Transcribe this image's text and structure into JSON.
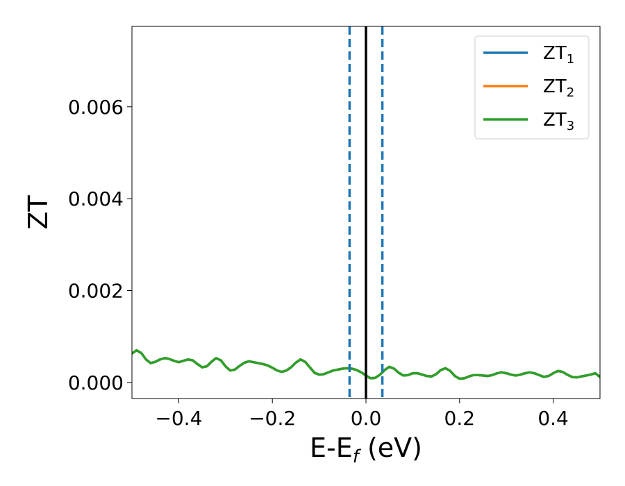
{
  "chart_data": {
    "type": "line",
    "xlabel": {
      "main": "E-E",
      "sub": "f",
      "suffix": " (eV)"
    },
    "ylabel": "ZT",
    "xlim": [
      -0.5,
      0.5
    ],
    "ylim": [
      -0.00035,
      0.00775
    ],
    "x_ticks": [
      -0.4,
      -0.2,
      0.0,
      0.2,
      0.4
    ],
    "x_tick_labels": [
      "−0.4",
      "−0.2",
      "0.0",
      "0.2",
      "0.4"
    ],
    "y_ticks": [
      0.0,
      0.002,
      0.004,
      0.006
    ],
    "y_tick_labels": [
      "0.000",
      "0.002",
      "0.004",
      "0.006"
    ],
    "grid": false,
    "legend_position": "top-right",
    "vertical_lines": [
      {
        "x": -0.035,
        "color": "#1f77b4",
        "style": "dashed"
      },
      {
        "x": 0.0,
        "color": "#000000",
        "style": "solid"
      },
      {
        "x": 0.035,
        "color": "#1f77b4",
        "style": "dashed"
      }
    ],
    "x": [
      -0.5,
      -0.49,
      -0.48,
      -0.47,
      -0.46,
      -0.45,
      -0.44,
      -0.43,
      -0.42,
      -0.41,
      -0.4,
      -0.39,
      -0.38,
      -0.37,
      -0.36,
      -0.35,
      -0.34,
      -0.33,
      -0.32,
      -0.31,
      -0.3,
      -0.29,
      -0.28,
      -0.27,
      -0.26,
      -0.25,
      -0.24,
      -0.23,
      -0.22,
      -0.21,
      -0.2,
      -0.19,
      -0.18,
      -0.17,
      -0.16,
      -0.15,
      -0.14,
      -0.13,
      -0.12,
      -0.11,
      -0.1,
      -0.09,
      -0.08,
      -0.07,
      -0.06,
      -0.05,
      -0.04,
      -0.03,
      -0.02,
      -0.01,
      0.0,
      0.01,
      0.02,
      0.03,
      0.04,
      0.05,
      0.06,
      0.07,
      0.08,
      0.09,
      0.1,
      0.11,
      0.12,
      0.13,
      0.14,
      0.15,
      0.16,
      0.17,
      0.18,
      0.19,
      0.2,
      0.21,
      0.22,
      0.23,
      0.24,
      0.25,
      0.26,
      0.27,
      0.28,
      0.29,
      0.3,
      0.31,
      0.32,
      0.33,
      0.34,
      0.35,
      0.36,
      0.37,
      0.38,
      0.39,
      0.4,
      0.41,
      0.42,
      0.43,
      0.44,
      0.45,
      0.46,
      0.47,
      0.48,
      0.49,
      0.5
    ],
    "series": [
      {
        "name": "ZT",
        "sub": "1",
        "color": "#1f77b4",
        "values": [
          0.00063,
          0.0007,
          0.00064,
          0.0005,
          0.00042,
          0.00045,
          0.0005,
          0.00053,
          0.00051,
          0.00047,
          0.00044,
          0.00047,
          0.0005,
          0.00048,
          0.0004,
          0.00033,
          0.00035,
          0.00045,
          0.00053,
          0.00048,
          0.00035,
          0.00026,
          0.00028,
          0.00036,
          0.00043,
          0.00046,
          0.00044,
          0.00042,
          0.0004,
          0.00037,
          0.00032,
          0.00026,
          0.00023,
          0.00026,
          0.00033,
          0.00043,
          0.0005,
          0.00045,
          0.00033,
          0.00021,
          0.00017,
          0.00018,
          0.00022,
          0.00026,
          0.00028,
          0.0003,
          0.00031,
          0.0003,
          0.00027,
          0.00022,
          0.00015,
          9e-05,
          0.0001,
          0.00017,
          0.00027,
          0.00034,
          0.0003,
          0.00021,
          0.00015,
          0.00016,
          0.0002,
          0.0002,
          0.00017,
          0.00014,
          0.00013,
          0.00018,
          0.00027,
          0.00031,
          0.00025,
          0.00014,
          8e-05,
          9e-05,
          0.00013,
          0.00016,
          0.00016,
          0.00015,
          0.00014,
          0.00016,
          0.0002,
          0.00022,
          0.0002,
          0.00017,
          0.00015,
          0.00017,
          0.0002,
          0.00022,
          0.0002,
          0.00016,
          0.00012,
          0.00014,
          0.0002,
          0.00025,
          0.00023,
          0.00017,
          0.00012,
          0.00011,
          0.00013,
          0.00015,
          0.00017,
          0.0002,
          0.00012
        ]
      },
      {
        "name": "ZT",
        "sub": "2",
        "color": "#ff7f0e",
        "values": [
          0.00063,
          0.0007,
          0.00064,
          0.0005,
          0.00042,
          0.00045,
          0.0005,
          0.00053,
          0.00051,
          0.00047,
          0.00044,
          0.00047,
          0.0005,
          0.00048,
          0.0004,
          0.00033,
          0.00035,
          0.00045,
          0.00053,
          0.00048,
          0.00035,
          0.00026,
          0.00028,
          0.00036,
          0.00043,
          0.00046,
          0.00044,
          0.00042,
          0.0004,
          0.00037,
          0.00032,
          0.00026,
          0.00023,
          0.00026,
          0.00033,
          0.00043,
          0.0005,
          0.00045,
          0.00033,
          0.00021,
          0.00017,
          0.00018,
          0.00022,
          0.00026,
          0.00028,
          0.0003,
          0.00031,
          0.0003,
          0.00027,
          0.00022,
          0.00015,
          9e-05,
          0.0001,
          0.00017,
          0.00027,
          0.00034,
          0.0003,
          0.00021,
          0.00015,
          0.00016,
          0.0002,
          0.0002,
          0.00017,
          0.00014,
          0.00013,
          0.00018,
          0.00027,
          0.00031,
          0.00025,
          0.00014,
          8e-05,
          9e-05,
          0.00013,
          0.00016,
          0.00016,
          0.00015,
          0.00014,
          0.00016,
          0.0002,
          0.00022,
          0.0002,
          0.00017,
          0.00015,
          0.00017,
          0.0002,
          0.00022,
          0.0002,
          0.00016,
          0.00012,
          0.00014,
          0.0002,
          0.00025,
          0.00023,
          0.00017,
          0.00012,
          0.00011,
          0.00013,
          0.00015,
          0.00017,
          0.0002,
          0.00012
        ]
      },
      {
        "name": "ZT",
        "sub": "3",
        "color": "#2ca02c",
        "values": [
          0.00063,
          0.0007,
          0.00064,
          0.0005,
          0.00042,
          0.00045,
          0.0005,
          0.00053,
          0.00051,
          0.00047,
          0.00044,
          0.00047,
          0.0005,
          0.00048,
          0.0004,
          0.00033,
          0.00035,
          0.00045,
          0.00053,
          0.00048,
          0.00035,
          0.00026,
          0.00028,
          0.00036,
          0.00043,
          0.00046,
          0.00044,
          0.00042,
          0.0004,
          0.00037,
          0.00032,
          0.00026,
          0.00023,
          0.00026,
          0.00033,
          0.00043,
          0.0005,
          0.00045,
          0.00033,
          0.00021,
          0.00017,
          0.00018,
          0.00022,
          0.00026,
          0.00028,
          0.0003,
          0.00031,
          0.0003,
          0.00027,
          0.00022,
          0.00015,
          9e-05,
          0.0001,
          0.00017,
          0.00027,
          0.00034,
          0.0003,
          0.00021,
          0.00015,
          0.00016,
          0.0002,
          0.0002,
          0.00017,
          0.00014,
          0.00013,
          0.00018,
          0.00027,
          0.00031,
          0.00025,
          0.00014,
          8e-05,
          9e-05,
          0.00013,
          0.00016,
          0.00016,
          0.00015,
          0.00014,
          0.00016,
          0.0002,
          0.00022,
          0.0002,
          0.00017,
          0.00015,
          0.00017,
          0.0002,
          0.00022,
          0.0002,
          0.00016,
          0.00012,
          0.00014,
          0.0002,
          0.00025,
          0.00023,
          0.00017,
          0.00012,
          0.00011,
          0.00013,
          0.00015,
          0.00017,
          0.0002,
          0.00012
        ]
      }
    ]
  }
}
